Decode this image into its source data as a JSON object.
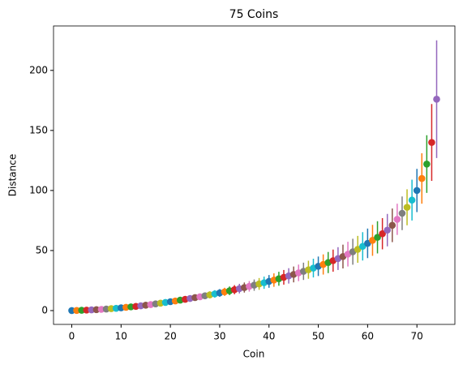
{
  "chart_data": {
    "type": "errorbar",
    "title": "75 Coins",
    "x_label": "Coin",
    "y_label": "Distance",
    "x": [
      0,
      1,
      2,
      3,
      4,
      5,
      6,
      7,
      8,
      9,
      10,
      11,
      12,
      13,
      14,
      15,
      16,
      17,
      18,
      19,
      20,
      21,
      22,
      23,
      24,
      25,
      26,
      27,
      28,
      29,
      30,
      31,
      32,
      33,
      34,
      35,
      36,
      37,
      38,
      39,
      40,
      41,
      42,
      43,
      44,
      45,
      46,
      47,
      48,
      49,
      50,
      51,
      52,
      53,
      54,
      55,
      56,
      57,
      58,
      59,
      60,
      61,
      62,
      63,
      64,
      65,
      66,
      67,
      68,
      69,
      70,
      71,
      72,
      73,
      74
    ],
    "values": [
      0,
      0.1,
      0.3,
      0.4,
      0.6,
      0.8,
      1,
      1.3,
      1.6,
      1.9,
      2.3,
      2.7,
      3.1,
      3.5,
      4,
      4.5,
      5,
      5.6,
      6.2,
      6.8,
      7.4,
      8,
      8.7,
      9.4,
      10.1,
      10.8,
      11.5,
      12.3,
      13.1,
      13.9,
      14.7,
      15.6,
      16.5,
      17.4,
      18.3,
      19.2,
      20.2,
      21.2,
      22.2,
      23.2,
      24.3,
      25.4,
      26.5,
      27.7,
      28.9,
      30.1,
      31.4,
      32.7,
      34,
      35.4,
      36.9,
      38.4,
      40,
      41.6,
      43.3,
      45,
      47,
      49,
      51,
      53.5,
      56,
      58.5,
      61,
      64,
      67,
      71,
      76,
      81,
      86,
      92,
      100,
      110,
      122,
      140,
      176
    ],
    "errors": [
      0,
      0,
      0.1,
      0.1,
      0.1,
      0.2,
      0.2,
      0.3,
      0.4,
      0.4,
      0.5,
      0.6,
      0.7,
      0.8,
      0.9,
      1,
      1.1,
      1.2,
      1.4,
      1.5,
      1.6,
      1.8,
      1.9,
      2.1,
      2.2,
      2.4,
      2.5,
      2.7,
      2.9,
      3.1,
      3.2,
      3.4,
      3.6,
      3.8,
      4,
      4.2,
      4.4,
      4.7,
      4.9,
      5.1,
      5.3,
      5.6,
      5.8,
      6.1,
      6.4,
      6.6,
      6.9,
      7.2,
      7.5,
      7.8,
      8.1,
      8.4,
      8.8,
      9.2,
      9.5,
      9.9,
      10.3,
      10.8,
      11.2,
      11.8,
      12.3,
      12.9,
      13.4,
      13,
      13.5,
      14,
      13,
      14,
      15,
      17,
      18,
      21,
      24,
      32,
      49
    ],
    "colors": [
      "#1f77b4",
      "#ff7f0e",
      "#2ca02c",
      "#d62728",
      "#9467bd",
      "#8c564b",
      "#e377c2",
      "#7f7f7f",
      "#bcbd22",
      "#17becf"
    ],
    "xlim": [
      -3.7,
      77.7
    ],
    "ylim": [
      -11.5,
      237
    ],
    "xticks": [
      0,
      10,
      20,
      30,
      40,
      50,
      60,
      70
    ],
    "yticks": [
      0,
      50,
      100,
      150,
      200
    ]
  }
}
